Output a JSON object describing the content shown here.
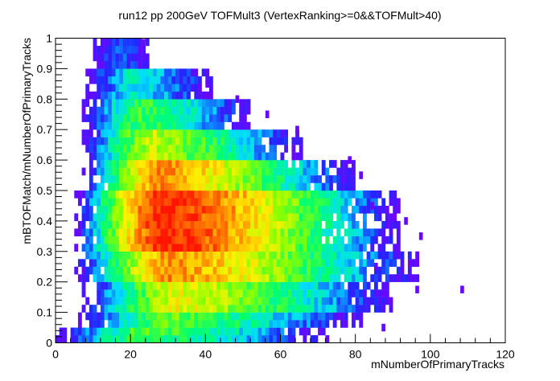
{
  "chart_data": {
    "type": "heatmap",
    "title": "run12 pp 200GeV TOFMult3 (VertexRanking>=0&&TOFMult>40)",
    "xlabel": "mNumberOfPrimaryTracks",
    "ylabel": "mBTOFMatch/mNumberOfPrimaryTracks",
    "xlim": [
      0,
      120
    ],
    "ylim": [
      0,
      1
    ],
    "x_ticks": [
      "0",
      "20",
      "40",
      "60",
      "80",
      "100",
      "120"
    ],
    "y_ticks": [
      "0",
      "0.1",
      "0.2",
      "0.3",
      "0.4",
      "0.5",
      "0.6",
      "0.7",
      "0.8",
      "0.9",
      "1"
    ],
    "bin_width_x": 1,
    "bin_width_y": 0.025,
    "color_scale": "rainbow (violet low -> red high)",
    "z_scale": "log",
    "grid": false,
    "legend": "none",
    "density_model": {
      "description": "approximate occupancy of each y band (y range) over x",
      "bands": [
        {
          "y": [
            0.0,
            0.025
          ],
          "x": [
            0,
            73
          ],
          "peak_x": 22,
          "peak_level": 0.5
        },
        {
          "y": [
            0.025,
            0.05
          ],
          "x": [
            1,
            72
          ],
          "peak_x": 25,
          "peak_level": 0.55
        },
        {
          "y": [
            0.05,
            0.1
          ],
          "x": [
            6,
            82
          ],
          "peak_x": 30,
          "peak_level": 0.55
        },
        {
          "y": [
            0.1,
            0.2
          ],
          "x": [
            7,
            90
          ],
          "peak_x": 32,
          "peak_level": 0.7
        },
        {
          "y": [
            0.2,
            0.3
          ],
          "x": [
            5,
            97
          ],
          "peak_x": 30,
          "peak_level": 0.85
        },
        {
          "y": [
            0.3,
            0.5
          ],
          "x": [
            5,
            92
          ],
          "peak_x": 28,
          "peak_level": 1.0
        },
        {
          "y": [
            0.5,
            0.6
          ],
          "x": [
            7,
            80
          ],
          "peak_x": 27,
          "peak_level": 0.85
        },
        {
          "y": [
            0.6,
            0.7
          ],
          "x": [
            7,
            66
          ],
          "peak_x": 25,
          "peak_level": 0.65
        },
        {
          "y": [
            0.7,
            0.8
          ],
          "x": [
            7,
            52
          ],
          "peak_x": 22,
          "peak_level": 0.5
        },
        {
          "y": [
            0.8,
            0.9
          ],
          "x": [
            8,
            42
          ],
          "peak_x": 20,
          "peak_level": 0.35
        },
        {
          "y": [
            0.9,
            1.0
          ],
          "x": [
            10,
            25
          ],
          "peak_x": 16,
          "peak_level": 0.2
        }
      ],
      "outliers": [
        {
          "x": 108.5,
          "y": 0.175
        },
        {
          "x": 97.5,
          "y": 0.35
        },
        {
          "x": 96.5,
          "y": 0.175
        },
        {
          "x": 93.5,
          "y": 0.4
        },
        {
          "x": 85.5,
          "y": 0.25
        },
        {
          "x": 84.5,
          "y": 0.45
        },
        {
          "x": 81.5,
          "y": 0.55
        },
        {
          "x": 78.5,
          "y": 0.6
        },
        {
          "x": 64.5,
          "y": 0.7
        },
        {
          "x": 56.5,
          "y": 0.75
        },
        {
          "x": 48.5,
          "y": 0.8
        },
        {
          "x": 40.5,
          "y": 0.85
        },
        {
          "x": 23.5,
          "y": 0.985
        },
        {
          "x": 87.5,
          "y": 0.05
        }
      ]
    }
  }
}
